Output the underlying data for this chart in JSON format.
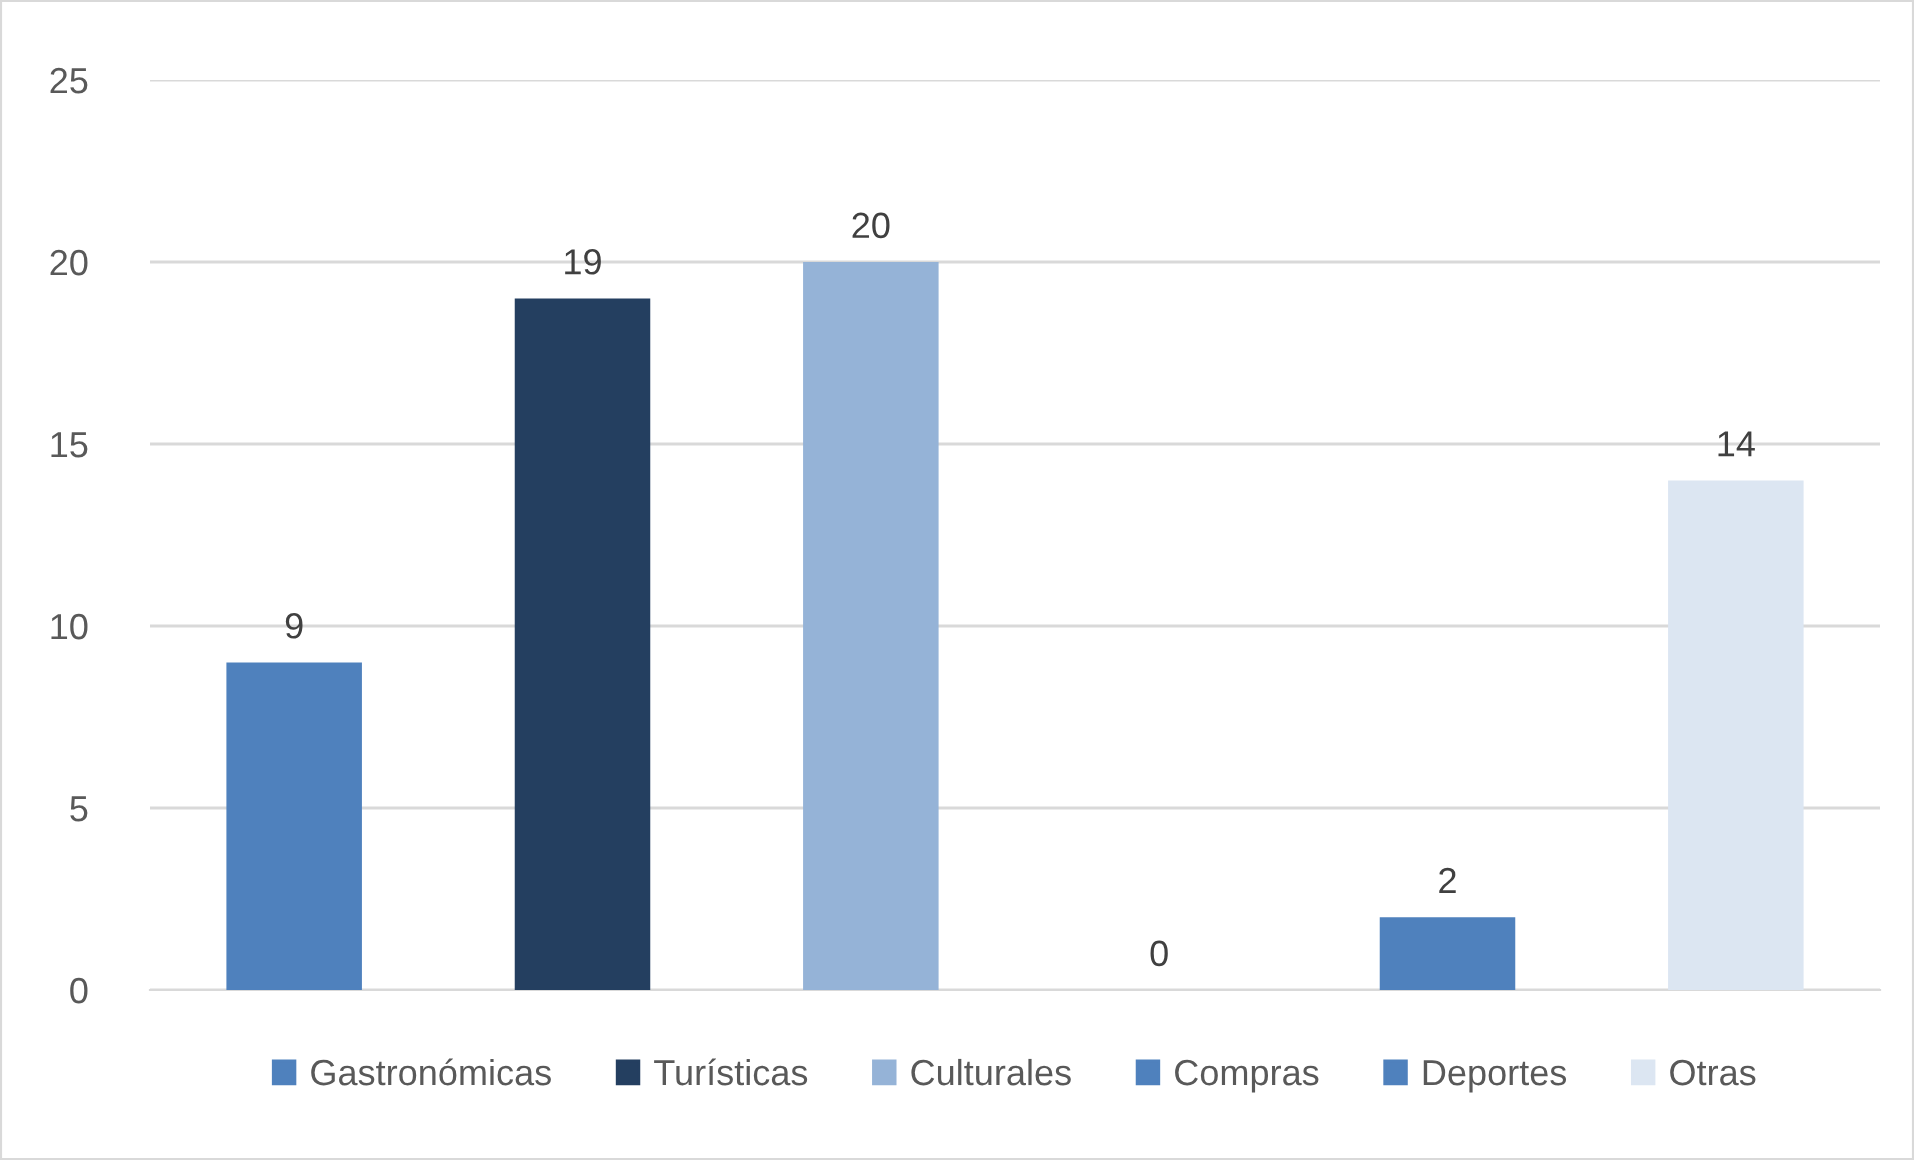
{
  "chart_data": {
    "type": "bar",
    "categories": [
      null,
      null,
      null,
      null,
      null,
      null
    ],
    "ylim": [
      0,
      25
    ],
    "yticks": [
      0,
      5,
      10,
      15,
      20,
      25
    ],
    "grid": "y",
    "legend": "bottom",
    "data_labels": true,
    "series": [
      {
        "name": "Gastronómicas",
        "color": "#4f81bd",
        "values": [
          9,
          null,
          null,
          null,
          null,
          null
        ]
      },
      {
        "name": "Turísticas",
        "color": "#243f60",
        "values": [
          null,
          19,
          null,
          null,
          null,
          null
        ]
      },
      {
        "name": "Culturales",
        "color": "#95b3d7",
        "values": [
          null,
          null,
          20,
          null,
          null,
          null
        ]
      },
      {
        "name": "Compras",
        "color": "#4f81bd",
        "values": [
          null,
          null,
          null,
          0,
          null,
          null
        ]
      },
      {
        "name": "Deportes",
        "color": "#4f81bd",
        "values": [
          null,
          null,
          null,
          null,
          2,
          null
        ]
      },
      {
        "name": "Otras",
        "color": "#dce6f2",
        "values": [
          null,
          null,
          null,
          null,
          null,
          14
        ]
      }
    ]
  }
}
